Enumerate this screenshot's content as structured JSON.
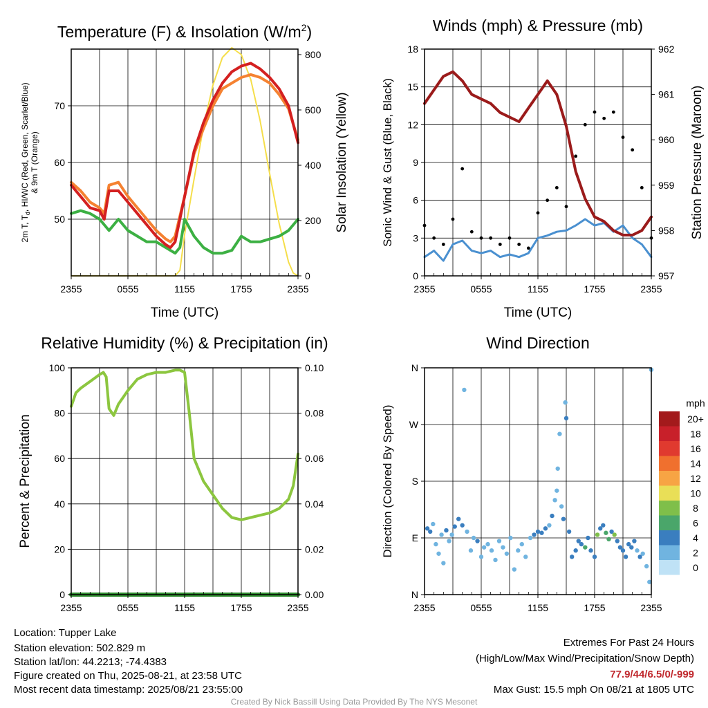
{
  "colors": {
    "temp": "#d42020",
    "dew": "#3cb043",
    "t9m": "#f58231",
    "solar": "#f5de4a",
    "wind": "#4a90d0",
    "gust": "#000000",
    "pressure": "#9b1b1b",
    "rh": "#8cc63f",
    "precip": "#2e8b2e",
    "extremes": "#c0282d",
    "credit": "#999999"
  },
  "time_ticks": [
    "2355",
    "0555",
    "1155",
    "1755",
    "2355"
  ],
  "chart_data": [
    {
      "type": "line",
      "title_main": "Temperature (F) & Insolation (W/m",
      "title_sup": "2",
      "title_end": ")",
      "xlabel": "Time (UTC)",
      "ylabel_line1": "2m T, T",
      "ylabel_sub": "d",
      "ylabel_line1_end": ", HI/WC (Red, Green, Scarlet/Blue)",
      "ylabel_line2": "& 9m T (Orange)",
      "ylabel_right": "Solar Insolation (Yellow)",
      "ylim": [
        40,
        80
      ],
      "yticks": [
        "50",
        "60",
        "70"
      ],
      "ylim_right": [
        0,
        820
      ],
      "yticks_right": [
        "0",
        "200",
        "400",
        "600",
        "800"
      ],
      "xlim_hours": [
        0,
        24
      ],
      "series": [
        {
          "key": "temp",
          "x": [
            0,
            1,
            2,
            3,
            3.5,
            4,
            5,
            6,
            7,
            8,
            9,
            10,
            10.5,
            11,
            12,
            13,
            14,
            15,
            16,
            17,
            18,
            19,
            20,
            21,
            22,
            23,
            24
          ],
          "values": [
            56,
            54,
            52,
            51.5,
            50,
            55,
            55,
            53,
            51,
            49,
            47,
            45.5,
            45,
            46,
            54,
            62,
            67,
            71,
            74,
            76,
            77,
            77.5,
            76.5,
            75,
            73,
            70,
            63.5
          ]
        },
        {
          "key": "t9m",
          "x": [
            0,
            1,
            2,
            3,
            3.5,
            4,
            5,
            6,
            7,
            8,
            9,
            10,
            10.5,
            11,
            12,
            13,
            14,
            15,
            16,
            17,
            18,
            19,
            20,
            21,
            22,
            23,
            24
          ],
          "values": [
            56.5,
            55,
            53,
            52,
            51,
            56,
            56.5,
            54,
            52,
            50,
            48,
            46.5,
            46,
            47,
            54,
            61.5,
            66,
            70,
            73,
            74,
            75,
            75.5,
            75,
            74,
            72,
            69.5,
            64
          ]
        },
        {
          "key": "dew",
          "x": [
            0,
            1,
            2,
            3,
            4,
            5,
            6,
            7,
            8,
            9,
            10,
            11,
            11.5,
            12,
            13,
            14,
            15,
            16,
            17,
            18,
            19,
            20,
            21,
            22,
            23,
            24
          ],
          "values": [
            51,
            51.5,
            51,
            50,
            48,
            50,
            48,
            47,
            46,
            46,
            45,
            44,
            45,
            50,
            47,
            45,
            44,
            44,
            44.5,
            47,
            46,
            46,
            46.5,
            47,
            48,
            50
          ]
        },
        {
          "key": "solar",
          "x": [
            0,
            10,
            11,
            11.5,
            12,
            13,
            14,
            15,
            16,
            17,
            18,
            19,
            20,
            21,
            22,
            23,
            23.5,
            24
          ],
          "values": [
            0,
            0,
            0,
            20,
            150,
            350,
            540,
            690,
            790,
            825,
            800,
            710,
            560,
            370,
            190,
            50,
            10,
            0
          ]
        }
      ]
    },
    {
      "type": "line",
      "title": "Winds (mph) & Pressure (mb)",
      "xlabel": "Time (UTC)",
      "ylabel": "Sonic Wind & Gust (Blue, Black)",
      "ylabel_right": "Station Pressure (Maroon)",
      "ylim": [
        0,
        18
      ],
      "yticks": [
        "0",
        "3",
        "6",
        "9",
        "12",
        "15",
        "18"
      ],
      "ylim_right": [
        957,
        962
      ],
      "yticks_right": [
        "957",
        "958",
        "959",
        "960",
        "961",
        "962"
      ],
      "series": [
        {
          "key": "wind",
          "x": [
            0,
            1,
            2,
            3,
            4,
            5,
            6,
            7,
            8,
            9,
            10,
            11,
            12,
            13,
            14,
            15,
            16,
            17,
            18,
            19,
            20,
            21,
            22,
            23,
            24
          ],
          "values": [
            1.5,
            2,
            1.2,
            2.5,
            2.8,
            2,
            1.8,
            2,
            1.5,
            1.7,
            1.5,
            1.8,
            3,
            3.2,
            3.5,
            3.6,
            4,
            4.5,
            4,
            4.2,
            3.5,
            4,
            3,
            2.5,
            1.5
          ]
        },
        {
          "key": "gust",
          "x": [
            0,
            1,
            2,
            3,
            4,
            5,
            6,
            7,
            8,
            9,
            10,
            11,
            12,
            13,
            14,
            15,
            16,
            17,
            18,
            19,
            20,
            21,
            22,
            23,
            24
          ],
          "values": [
            4,
            3,
            2.5,
            4.5,
            8.5,
            3.5,
            3,
            3,
            2.5,
            3,
            2.5,
            2.2,
            5,
            6,
            7,
            5.5,
            9.5,
            12,
            13,
            12.5,
            13,
            11,
            10,
            7,
            3
          ]
        },
        {
          "key": "pressure",
          "x": [
            0,
            1,
            2,
            3,
            4,
            5,
            6,
            7,
            8,
            9,
            10,
            11,
            12,
            13,
            14,
            15,
            16,
            17,
            18,
            19,
            20,
            21,
            22,
            23,
            24
          ],
          "values": [
            960.8,
            961.1,
            961.4,
            961.5,
            961.3,
            961.0,
            960.9,
            960.8,
            960.6,
            960.5,
            960.4,
            960.7,
            961.0,
            961.3,
            961.0,
            960.3,
            959.3,
            958.7,
            958.3,
            958.2,
            958.0,
            957.9,
            957.9,
            958.0,
            958.3
          ]
        }
      ]
    },
    {
      "type": "line",
      "title": "Relative Humidity (%) & Precipitation (in)",
      "ylabel": "Percent & Precipitation",
      "ylim": [
        0,
        100
      ],
      "yticks": [
        "0",
        "20",
        "40",
        "60",
        "80",
        "100"
      ],
      "ylim_right": [
        0,
        0.1
      ],
      "yticks_right": [
        "0.00",
        "0.02",
        "0.04",
        "0.06",
        "0.08",
        "0.10"
      ],
      "series": [
        {
          "key": "rh",
          "x": [
            0,
            0.5,
            1,
            2,
            3,
            3.4,
            3.7,
            4,
            4.5,
            5,
            6,
            7,
            8,
            9,
            10,
            11,
            11.5,
            12,
            12.5,
            13,
            14,
            15,
            16,
            17,
            18,
            19,
            20,
            21,
            22,
            23,
            23.5,
            24
          ],
          "values": [
            83,
            89,
            91,
            94,
            97,
            98,
            96,
            82,
            79,
            84,
            90,
            95,
            97,
            98,
            98,
            99,
            99,
            98,
            80,
            60,
            50,
            44,
            38,
            34,
            33,
            34,
            35,
            36,
            38,
            42,
            48,
            62
          ]
        },
        {
          "key": "precip",
          "x": [
            0,
            24
          ],
          "values": [
            0,
            0
          ]
        }
      ]
    },
    {
      "type": "scatter",
      "title": "Wind Direction",
      "ylabel": "Direction (Colored By Speed)",
      "yticks": [
        "N",
        "E",
        "S",
        "W",
        "N"
      ],
      "ylim_deg": [
        0,
        360
      ],
      "legend_title": "mph",
      "legend": [
        {
          "label": "20+",
          "color": "#a31a1c"
        },
        {
          "label": "18",
          "color": "#c8202a"
        },
        {
          "label": "16",
          "color": "#e03a2f"
        },
        {
          "label": "14",
          "color": "#f0702e"
        },
        {
          "label": "12",
          "color": "#f7a444"
        },
        {
          "label": "10",
          "color": "#e9df57"
        },
        {
          "label": "8",
          "color": "#7fbf4a"
        },
        {
          "label": "6",
          "color": "#4aa66a"
        },
        {
          "label": "4",
          "color": "#3a7ebf"
        },
        {
          "label": "2",
          "color": "#70b4e0"
        },
        {
          "label": "0",
          "color": "#bfe2f6"
        }
      ],
      "points": [
        {
          "x": 0.3,
          "d": 105,
          "s": 3
        },
        {
          "x": 0.6,
          "d": 100,
          "s": 4
        },
        {
          "x": 0.9,
          "d": 112,
          "s": 2
        },
        {
          "x": 1.2,
          "d": 80,
          "s": 1
        },
        {
          "x": 1.5,
          "d": 65,
          "s": 1
        },
        {
          "x": 1.8,
          "d": 95,
          "s": 2
        },
        {
          "x": 2.0,
          "d": 50,
          "s": 1
        },
        {
          "x": 2.3,
          "d": 102,
          "s": 3
        },
        {
          "x": 2.6,
          "d": 85,
          "s": 2
        },
        {
          "x": 2.9,
          "d": 95,
          "s": 2
        },
        {
          "x": 3.2,
          "d": 108,
          "s": 3
        },
        {
          "x": 3.6,
          "d": 120,
          "s": 4
        },
        {
          "x": 4.0,
          "d": 110,
          "s": 3
        },
        {
          "x": 4.2,
          "d": 325,
          "s": 1
        },
        {
          "x": 4.5,
          "d": 100,
          "s": 2
        },
        {
          "x": 4.9,
          "d": 70,
          "s": 1
        },
        {
          "x": 5.2,
          "d": 90,
          "s": 2
        },
        {
          "x": 5.6,
          "d": 85,
          "s": 3
        },
        {
          "x": 6.0,
          "d": 60,
          "s": 1
        },
        {
          "x": 6.3,
          "d": 75,
          "s": 2
        },
        {
          "x": 6.7,
          "d": 80,
          "s": 1
        },
        {
          "x": 7.1,
          "d": 70,
          "s": 2
        },
        {
          "x": 7.5,
          "d": 55,
          "s": 1
        },
        {
          "x": 7.9,
          "d": 85,
          "s": 1
        },
        {
          "x": 8.3,
          "d": 75,
          "s": 2
        },
        {
          "x": 8.7,
          "d": 65,
          "s": 1
        },
        {
          "x": 9.1,
          "d": 90,
          "s": 2
        },
        {
          "x": 9.5,
          "d": 40,
          "s": 1
        },
        {
          "x": 9.9,
          "d": 70,
          "s": 1
        },
        {
          "x": 10.3,
          "d": 80,
          "s": 2
        },
        {
          "x": 10.7,
          "d": 60,
          "s": 1
        },
        {
          "x": 11.2,
          "d": 90,
          "s": 2
        },
        {
          "x": 11.6,
          "d": 95,
          "s": 3
        },
        {
          "x": 12.0,
          "d": 100,
          "s": 3
        },
        {
          "x": 12.4,
          "d": 98,
          "s": 4
        },
        {
          "x": 12.8,
          "d": 105,
          "s": 3
        },
        {
          "x": 13.2,
          "d": 110,
          "s": 2
        },
        {
          "x": 13.5,
          "d": 125,
          "s": 3
        },
        {
          "x": 13.8,
          "d": 150,
          "s": 2
        },
        {
          "x": 14.0,
          "d": 165,
          "s": 2
        },
        {
          "x": 14.1,
          "d": 200,
          "s": 2
        },
        {
          "x": 14.3,
          "d": 255,
          "s": 2
        },
        {
          "x": 14.5,
          "d": 140,
          "s": 2
        },
        {
          "x": 14.7,
          "d": 120,
          "s": 4
        },
        {
          "x": 14.9,
          "d": 305,
          "s": 2
        },
        {
          "x": 15.0,
          "d": 280,
          "s": 3
        },
        {
          "x": 15.3,
          "d": 100,
          "s": 4
        },
        {
          "x": 15.6,
          "d": 60,
          "s": 3
        },
        {
          "x": 16.0,
          "d": 70,
          "s": 4
        },
        {
          "x": 16.3,
          "d": 85,
          "s": 3
        },
        {
          "x": 16.6,
          "d": 80,
          "s": 4
        },
        {
          "x": 17.0,
          "d": 75,
          "s": 5
        },
        {
          "x": 17.3,
          "d": 90,
          "s": 4
        },
        {
          "x": 17.6,
          "d": 70,
          "s": 4
        },
        {
          "x": 18.0,
          "d": 60,
          "s": 3
        },
        {
          "x": 18.3,
          "d": 95,
          "s": 7
        },
        {
          "x": 18.6,
          "d": 105,
          "s": 4
        },
        {
          "x": 18.9,
          "d": 110,
          "s": 4
        },
        {
          "x": 19.2,
          "d": 98,
          "s": 5
        },
        {
          "x": 19.5,
          "d": 88,
          "s": 6
        },
        {
          "x": 19.8,
          "d": 100,
          "s": 4
        },
        {
          "x": 20.1,
          "d": 95,
          "s": 7
        },
        {
          "x": 20.4,
          "d": 85,
          "s": 4
        },
        {
          "x": 20.7,
          "d": 75,
          "s": 4
        },
        {
          "x": 21.0,
          "d": 70,
          "s": 3
        },
        {
          "x": 21.3,
          "d": 60,
          "s": 3
        },
        {
          "x": 21.6,
          "d": 80,
          "s": 4
        },
        {
          "x": 21.9,
          "d": 75,
          "s": 3
        },
        {
          "x": 22.2,
          "d": 85,
          "s": 3
        },
        {
          "x": 22.5,
          "d": 70,
          "s": 2
        },
        {
          "x": 22.8,
          "d": 60,
          "s": 3
        },
        {
          "x": 23.1,
          "d": 65,
          "s": 2
        },
        {
          "x": 23.5,
          "d": 45,
          "s": 2
        },
        {
          "x": 23.8,
          "d": 20,
          "s": 2
        },
        {
          "x": 24.0,
          "d": 357,
          "s": 2
        }
      ]
    }
  ],
  "info": {
    "location": "Location: Tupper Lake",
    "elevation": "Station elevation: 502.829 m",
    "latlon": "Station lat/lon: 44.2213; -74.4383",
    "created": "Figure created on Thu, 2025-08-21, at 23:58 UTC",
    "recent": "Most recent data timestamp: 2025/08/21 23:55:00"
  },
  "extremes": {
    "title": "Extremes For Past 24 Hours",
    "subtitle": "(High/Low/Max Wind/Precipitation/Snow Depth)",
    "values": "77.9/44/6.5/0/-999",
    "gust": "Max Gust: 15.5 mph On 08/21 at 1805 UTC"
  },
  "credit": "Created By Nick Bassill Using Data Provided By The NYS Mesonet"
}
